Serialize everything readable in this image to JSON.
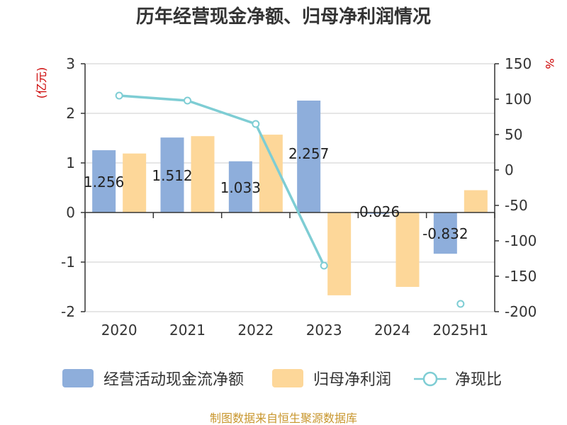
{
  "chart_data": {
    "type": "bar",
    "title": "历年经营现金净额、归母净利润情况",
    "categories": [
      "2020",
      "2021",
      "2022",
      "2023",
      "2024",
      "2025H1"
    ],
    "y_left": {
      "unit": "(亿元)",
      "lim": [
        -2,
        3
      ],
      "ticks": [
        -2,
        -1,
        0,
        1,
        2,
        3
      ]
    },
    "y_right": {
      "unit": "%",
      "lim": [
        -200,
        150
      ],
      "ticks": [
        -200,
        -150,
        -100,
        -50,
        0,
        50,
        100,
        150
      ]
    },
    "series": [
      {
        "name": "经营活动现金流净额",
        "type": "bar",
        "axis": "left",
        "color": "#8eaedb",
        "values": [
          1.256,
          1.512,
          1.033,
          2.257,
          -0.026,
          -0.832
        ],
        "labels": [
          "1.256",
          "1.512",
          "1.033",
          "2.257",
          "-0.026",
          "-0.832"
        ]
      },
      {
        "name": "归母净利润",
        "type": "bar",
        "axis": "left",
        "color": "#fdd799",
        "values": [
          1.19,
          1.54,
          1.57,
          -1.67,
          -1.5,
          0.45
        ]
      },
      {
        "name": "净现比",
        "type": "line",
        "axis": "right",
        "color": "#7ecdd4",
        "values": [
          105,
          98,
          65,
          -135,
          null,
          -189
        ]
      }
    ],
    "legend_position": "bottom",
    "grid": true
  },
  "source": "制图数据来自恒生聚源数据库"
}
